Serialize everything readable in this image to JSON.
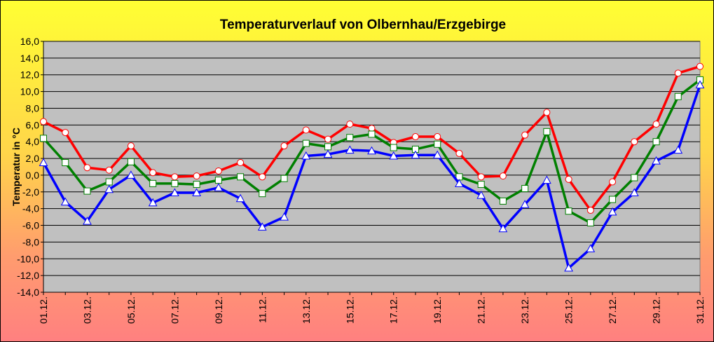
{
  "chart_data": {
    "type": "line",
    "title": "Temperaturverlauf von Olbernhau/Erzgebirge",
    "ylabel": "Temperatur  in °C",
    "xlabel": "",
    "ylim": [
      -14,
      16
    ],
    "ytick_step": 2,
    "ytick_labels": [
      "-14,0",
      "-12,0",
      "-10,0",
      "-8,0",
      "-6,0",
      "-4,0",
      "-2,0",
      "0,0",
      "2,0",
      "4,0",
      "6,0",
      "8,0",
      "10,0",
      "12,0",
      "14,0",
      "16,0"
    ],
    "x": [
      "01.12.",
      "02.12.",
      "03.12.",
      "04.12.",
      "05.12.",
      "06.12.",
      "07.12.",
      "08.12.",
      "09.12.",
      "10.12.",
      "11.12.",
      "12.12.",
      "13.12.",
      "14.12.",
      "15.12.",
      "16.12.",
      "17.12.",
      "18.12.",
      "19.12.",
      "20.12.",
      "21.12.",
      "22.12.",
      "23.12.",
      "24.12.",
      "25.12.",
      "26.12.",
      "27.12.",
      "28.12.",
      "29.12.",
      "30.12.",
      "31.12."
    ],
    "x_tick_labels_shown": [
      "01.12.",
      "03.12.",
      "05.12.",
      "07.12.",
      "09.12.",
      "11.12.",
      "13.12.",
      "15.12.",
      "17.12.",
      "19.12.",
      "21.12.",
      "23.12.",
      "25.12.",
      "27.12.",
      "29.12.",
      "31.12."
    ],
    "grid": true,
    "legend": "none",
    "plot_background": "#c0c0c0",
    "series": [
      {
        "color": "#ff0000",
        "marker": "circle",
        "values": [
          6.4,
          5.1,
          0.9,
          0.6,
          3.5,
          0.3,
          -0.2,
          -0.1,
          0.5,
          1.5,
          -0.2,
          3.5,
          5.4,
          4.3,
          6.1,
          5.6,
          3.9,
          4.6,
          4.6,
          2.6,
          -0.2,
          -0.1,
          4.8,
          7.5,
          -0.5,
          -4.2,
          -0.8,
          4.0,
          6.1,
          12.2,
          13.0
        ]
      },
      {
        "color": "#008000",
        "marker": "square",
        "values": [
          4.4,
          1.5,
          -1.9,
          -0.8,
          1.6,
          -1.0,
          -1.0,
          -1.1,
          -0.6,
          -0.2,
          -2.2,
          -0.4,
          3.8,
          3.4,
          4.5,
          4.9,
          3.3,
          3.1,
          3.7,
          -0.2,
          -1.1,
          -3.1,
          -1.6,
          5.2,
          -4.3,
          -5.7,
          -2.9,
          -0.3,
          4.0,
          9.4,
          11.4
        ]
      },
      {
        "color": "#0000ff",
        "marker": "triangle",
        "values": [
          1.5,
          -3.2,
          -5.5,
          -1.7,
          0.0,
          -3.3,
          -2.1,
          -2.1,
          -1.5,
          -2.8,
          -6.2,
          -5.0,
          2.3,
          2.5,
          3.0,
          2.9,
          2.3,
          2.4,
          2.4,
          -1.0,
          -2.4,
          -6.4,
          -3.5,
          -0.6,
          -11.1,
          -8.8,
          -4.4,
          -2.1,
          1.7,
          3.0,
          10.8
        ]
      }
    ]
  }
}
